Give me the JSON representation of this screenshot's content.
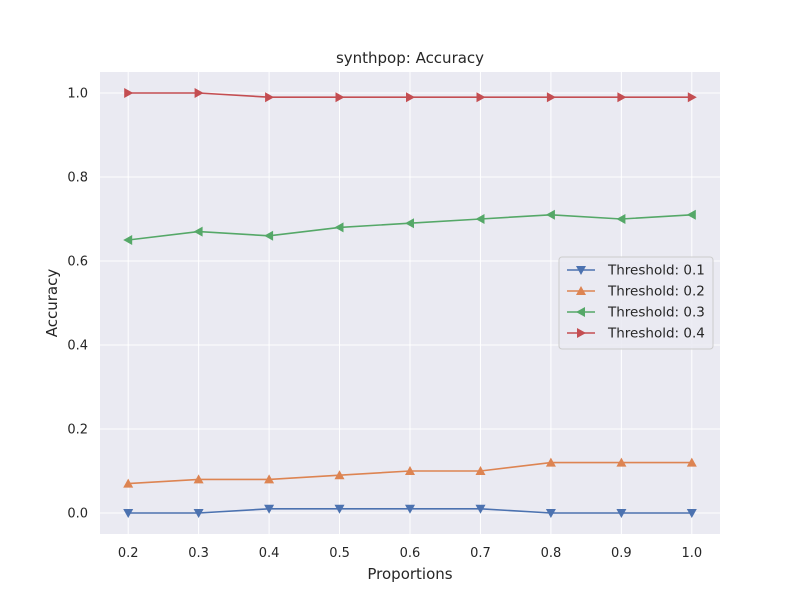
{
  "chart_data": {
    "type": "line",
    "title": "synthpop: Accuracy",
    "xlabel": "Proportions",
    "ylabel": "Accuracy",
    "xlim": [
      0.16,
      1.04
    ],
    "ylim": [
      -0.05,
      1.05
    ],
    "grid": true,
    "legend_position": "center-right",
    "x": [
      0.2,
      0.3,
      0.4,
      0.5,
      0.6,
      0.7,
      0.8,
      0.9,
      1.0
    ],
    "x_tick_labels": [
      "0.2",
      "0.3",
      "0.4",
      "0.5",
      "0.6",
      "0.7",
      "0.8",
      "0.9",
      "1.0"
    ],
    "y_ticks": [
      0.0,
      0.2,
      0.4,
      0.6,
      0.8,
      1.0
    ],
    "y_tick_labels": [
      "0.0",
      "0.2",
      "0.4",
      "0.6",
      "0.8",
      "1.0"
    ],
    "series": [
      {
        "name": "Threshold: 0.1",
        "color": "#4c72b0",
        "marker": "triangle-down",
        "values": [
          0.0,
          0.0,
          0.01,
          0.01,
          0.01,
          0.01,
          0.0,
          0.0,
          0.0
        ]
      },
      {
        "name": "Threshold: 0.2",
        "color": "#dd8452",
        "marker": "triangle-up",
        "values": [
          0.07,
          0.08,
          0.08,
          0.09,
          0.1,
          0.1,
          0.12,
          0.12,
          0.12
        ]
      },
      {
        "name": "Threshold: 0.3",
        "color": "#55a868",
        "marker": "triangle-left",
        "values": [
          0.65,
          0.67,
          0.66,
          0.68,
          0.69,
          0.7,
          0.71,
          0.7,
          0.71
        ]
      },
      {
        "name": "Threshold: 0.4",
        "color": "#c44e52",
        "marker": "triangle-right",
        "values": [
          1.0,
          1.0,
          0.99,
          0.99,
          0.99,
          0.99,
          0.99,
          0.99,
          0.99
        ]
      }
    ]
  }
}
